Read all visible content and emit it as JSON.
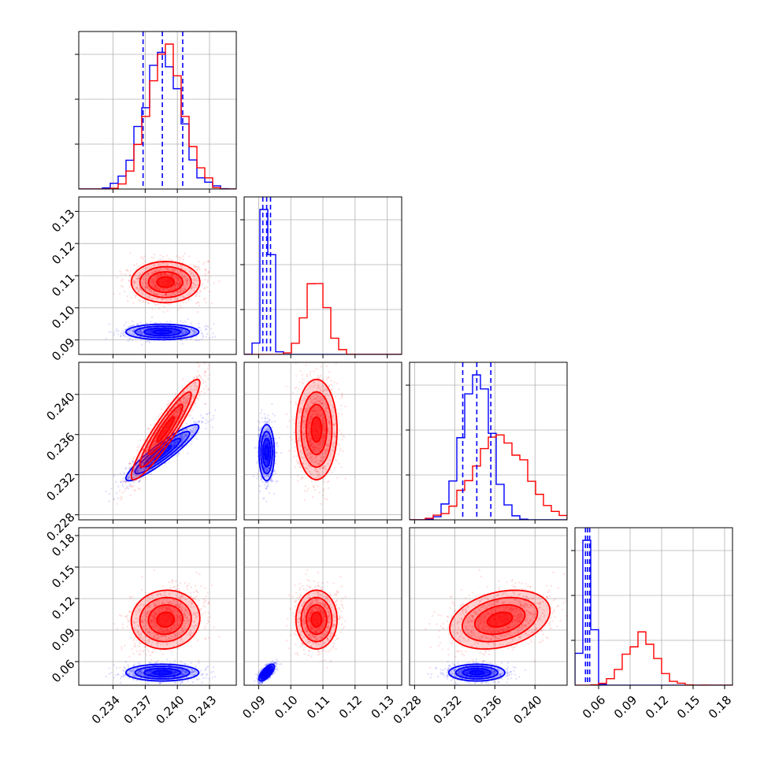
{
  "chart_data": {
    "type": "corner",
    "colors": {
      "posterior_a": "#0000ff",
      "posterior_b": "#ff0000",
      "grid": "#b0b0b0"
    },
    "grid": true,
    "parameters": [
      {
        "ticks": [
          0.234,
          0.237,
          0.24,
          0.243
        ],
        "tick_labels": [
          "0.234",
          "0.237",
          "0.240",
          "0.243"
        ],
        "range": [
          0.2308,
          0.2455
        ]
      },
      {
        "ticks": [
          0.09,
          0.1,
          0.11,
          0.12,
          0.13
        ],
        "tick_labels": [
          "0.09",
          "0.10",
          "0.11",
          "0.12",
          "0.13"
        ],
        "range": [
          0.0855,
          0.1345
        ]
      },
      {
        "ticks": [
          0.228,
          0.232,
          0.236,
          0.24
        ],
        "tick_labels": [
          "0.228",
          "0.232",
          "0.236",
          "0.240"
        ],
        "range": [
          0.2275,
          0.2432
        ]
      },
      {
        "ticks": [
          0.06,
          0.09,
          0.12,
          0.15,
          0.18
        ],
        "tick_labels": [
          "0.06",
          "0.09",
          "0.12",
          "0.15",
          "0.18"
        ],
        "range": [
          0.0375,
          0.1875
        ]
      }
    ],
    "series": [
      {
        "color": "#0000ff",
        "means": [
          0.2386,
          0.0925,
          0.2342,
          0.0495
        ],
        "sigmas": [
          0.0017,
          0.0012,
          0.0014,
          0.004
        ],
        "correlations": [
          [
            0,
            1,
            0.0
          ],
          [
            0,
            2,
            0.92
          ],
          [
            0,
            3,
            0.0
          ],
          [
            1,
            2,
            0.0
          ],
          [
            1,
            3,
            0.7
          ],
          [
            2,
            3,
            0.0
          ]
        ],
        "quantiles": [
          [
            0.2368,
            0.2386,
            0.2405
          ],
          [
            0.0913,
            0.0925,
            0.0937
          ],
          [
            0.2328,
            0.2342,
            0.2356
          ],
          [
            0.0475,
            0.0495,
            0.0515
          ]
        ]
      },
      {
        "color": "#ff0000",
        "means": [
          0.2389,
          0.108,
          0.2365,
          0.1
        ],
        "sigmas": [
          0.0016,
          0.0032,
          0.0025,
          0.014
        ],
        "correlations": [
          [
            0,
            1,
            0.0
          ],
          [
            0,
            2,
            0.93
          ],
          [
            0,
            3,
            0.05
          ],
          [
            1,
            2,
            0.0
          ],
          [
            1,
            3,
            0.0
          ],
          [
            2,
            3,
            0.3
          ]
        ],
        "quantiles": []
      }
    ]
  }
}
